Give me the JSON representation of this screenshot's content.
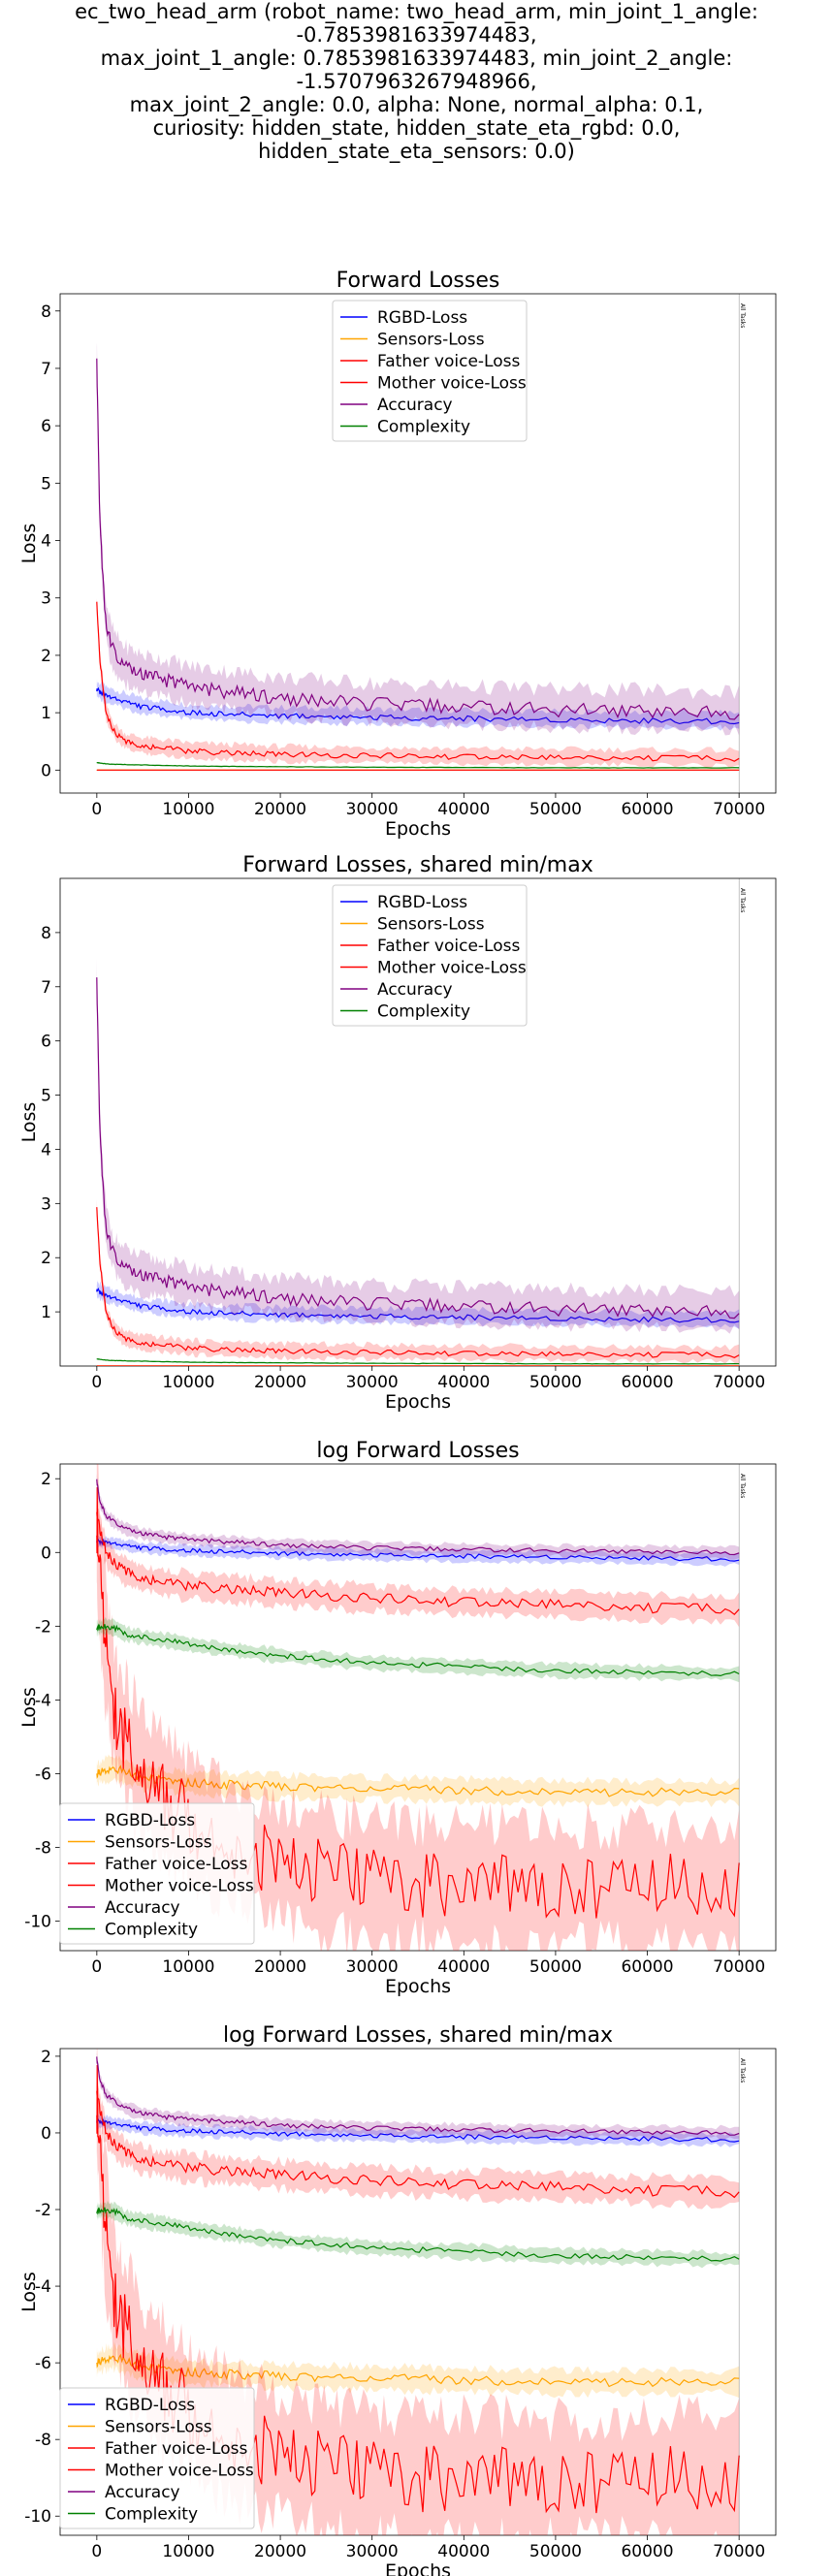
{
  "suptitle": "ec_two_head_arm (robot_name: two_head_arm, min_joint_1_angle: -0.7853981633974483,\nmax_joint_1_angle: 0.7853981633974483, min_joint_2_angle: -1.5707963267948966,\nmax_joint_2_angle: 0.0, alpha: None, normal_alpha: 0.1,\ncuriosity: hidden_state, hidden_state_eta_rgbd: 0.0,\nhidden_state_eta_sensors: 0.0)",
  "colors": {
    "RGBD-Loss": "#0000ff",
    "Sensors-Loss": "#ffa500",
    "Father voice-Loss": "#ff0000",
    "Mother voice-Loss": "#ff0000",
    "Accuracy": "#800080",
    "Complexity": "#008000"
  },
  "chart_data": [
    {
      "type": "line",
      "title": "Forward Losses",
      "xlabel": "Epochs",
      "ylabel": "Loss",
      "xlim": [
        -4000,
        74000
      ],
      "ylim": [
        -0.4,
        8.3
      ],
      "xticks": [
        0,
        10000,
        20000,
        30000,
        40000,
        50000,
        60000,
        70000
      ],
      "yticks": [
        0,
        1,
        2,
        3,
        4,
        5,
        6,
        7,
        8
      ],
      "vline": {
        "x": 70000,
        "label": "All Tasks"
      },
      "legend": {
        "position": "upper center"
      },
      "series": [
        {
          "name": "RGBD-Loss",
          "x": [
            0,
            500,
            1000,
            2000,
            3000,
            5000,
            8000,
            10000,
            15000,
            20000,
            30000,
            40000,
            50000,
            60000,
            70000
          ],
          "values": [
            1.4,
            1.35,
            1.3,
            1.25,
            1.2,
            1.1,
            1.05,
            1.0,
            0.97,
            0.95,
            0.92,
            0.9,
            0.88,
            0.86,
            0.85
          ],
          "band": 0.12
        },
        {
          "name": "Sensors-Loss",
          "x": [
            0,
            500,
            1000,
            2000,
            5000,
            10000,
            20000,
            40000,
            70000
          ],
          "values": [
            0.003,
            0.002,
            0.002,
            0.002,
            0.002,
            0.002,
            0.002,
            0.002,
            0.002
          ],
          "band": 0.002
        },
        {
          "name": "Father voice-Loss",
          "x": [
            0,
            300,
            700,
            1000,
            1500,
            2000,
            3000,
            5000,
            8000,
            10000,
            15000,
            20000,
            30000,
            40000,
            50000,
            60000,
            70000
          ],
          "values": [
            2.9,
            2.0,
            1.4,
            1.0,
            0.8,
            0.65,
            0.5,
            0.42,
            0.37,
            0.33,
            0.3,
            0.27,
            0.25,
            0.23,
            0.22,
            0.21,
            0.2
          ],
          "band": 0.12
        },
        {
          "name": "Mother voice-Loss",
          "x": [
            0,
            1000,
            2000,
            5000,
            10000,
            20000,
            40000,
            70000
          ],
          "values": [
            0.0003,
            0.0002,
            0.0002,
            0.0002,
            0.0002,
            0.0002,
            0.0002,
            0.0002
          ],
          "band": 0.0002
        },
        {
          "name": "Accuracy",
          "x": [
            0,
            300,
            700,
            1000,
            1500,
            2000,
            3000,
            5000,
            8000,
            10000,
            15000,
            20000,
            30000,
            40000,
            50000,
            60000,
            70000
          ],
          "values": [
            7.1,
            4.5,
            3.2,
            2.6,
            2.2,
            2.0,
            1.8,
            1.65,
            1.55,
            1.45,
            1.35,
            1.25,
            1.15,
            1.1,
            1.05,
            1.03,
            1.0
          ],
          "band": 0.3
        },
        {
          "name": "Complexity",
          "x": [
            0,
            500,
            1000,
            2000,
            5000,
            10000,
            20000,
            30000,
            40000,
            50000,
            60000,
            70000
          ],
          "values": [
            0.13,
            0.12,
            0.11,
            0.1,
            0.09,
            0.07,
            0.06,
            0.05,
            0.045,
            0.042,
            0.04,
            0.04
          ],
          "band": 0.01
        }
      ]
    },
    {
      "type": "line",
      "title": "Forward Losses, shared min/max",
      "xlabel": "Epochs",
      "ylabel": "Loss",
      "xlim": [
        -4000,
        74000
      ],
      "ylim": [
        0.0,
        9.0
      ],
      "xticks": [
        0,
        10000,
        20000,
        30000,
        40000,
        50000,
        60000,
        70000
      ],
      "yticks": [
        1,
        2,
        3,
        4,
        5,
        6,
        7,
        8
      ],
      "vline": {
        "x": 70000,
        "label": "All Tasks"
      },
      "legend": {
        "position": "upper center"
      },
      "series": [
        {
          "name": "RGBD-Loss",
          "x": [
            0,
            500,
            1000,
            2000,
            3000,
            5000,
            8000,
            10000,
            15000,
            20000,
            30000,
            40000,
            50000,
            60000,
            70000
          ],
          "values": [
            1.4,
            1.35,
            1.3,
            1.25,
            1.2,
            1.1,
            1.05,
            1.0,
            0.97,
            0.95,
            0.92,
            0.9,
            0.88,
            0.86,
            0.85
          ],
          "band": 0.12
        },
        {
          "name": "Sensors-Loss",
          "x": [
            0,
            500,
            1000,
            2000,
            5000,
            10000,
            20000,
            40000,
            70000
          ],
          "values": [
            0.003,
            0.002,
            0.002,
            0.002,
            0.002,
            0.002,
            0.002,
            0.002,
            0.002
          ],
          "band": 0.002
        },
        {
          "name": "Father voice-Loss",
          "x": [
            0,
            300,
            700,
            1000,
            1500,
            2000,
            3000,
            5000,
            8000,
            10000,
            15000,
            20000,
            30000,
            40000,
            50000,
            60000,
            70000
          ],
          "values": [
            2.9,
            2.0,
            1.4,
            1.0,
            0.8,
            0.65,
            0.5,
            0.42,
            0.37,
            0.33,
            0.3,
            0.27,
            0.25,
            0.23,
            0.22,
            0.21,
            0.2
          ],
          "band": 0.12
        },
        {
          "name": "Mother voice-Loss",
          "x": [
            0,
            1000,
            2000,
            5000,
            10000,
            20000,
            40000,
            70000
          ],
          "values": [
            0.0003,
            0.0002,
            0.0002,
            0.0002,
            0.0002,
            0.0002,
            0.0002,
            0.0002
          ],
          "band": 0.0002
        },
        {
          "name": "Accuracy",
          "x": [
            0,
            300,
            700,
            1000,
            1500,
            2000,
            3000,
            5000,
            8000,
            10000,
            15000,
            20000,
            30000,
            40000,
            50000,
            60000,
            70000
          ],
          "values": [
            7.1,
            4.5,
            3.2,
            2.6,
            2.2,
            2.0,
            1.8,
            1.65,
            1.55,
            1.45,
            1.35,
            1.25,
            1.15,
            1.1,
            1.05,
            1.03,
            1.0
          ],
          "band": 0.3
        },
        {
          "name": "Complexity",
          "x": [
            0,
            500,
            1000,
            2000,
            5000,
            10000,
            20000,
            30000,
            40000,
            50000,
            60000,
            70000
          ],
          "values": [
            0.13,
            0.12,
            0.11,
            0.1,
            0.09,
            0.07,
            0.06,
            0.05,
            0.045,
            0.042,
            0.04,
            0.04
          ],
          "band": 0.01
        }
      ]
    },
    {
      "type": "line",
      "title": "log Forward Losses",
      "xlabel": "Epochs",
      "ylabel": "Loss",
      "xlim": [
        -4000,
        74000
      ],
      "ylim": [
        -10.8,
        2.4
      ],
      "xticks": [
        0,
        10000,
        20000,
        30000,
        40000,
        50000,
        60000,
        70000
      ],
      "yticks": [
        2,
        0,
        -2,
        -4,
        -6,
        -8,
        -10
      ],
      "vline": {
        "x": 70000,
        "label": "All Tasks"
      },
      "legend": {
        "position": "lower left"
      },
      "series": [
        {
          "name": "RGBD-Loss",
          "x": [
            0,
            1000,
            3000,
            5000,
            10000,
            20000,
            30000,
            40000,
            50000,
            60000,
            70000
          ],
          "values": [
            0.3,
            0.28,
            0.2,
            0.12,
            0.05,
            -0.02,
            -0.07,
            -0.1,
            -0.12,
            -0.15,
            -0.18
          ],
          "band": 0.15
        },
        {
          "name": "Sensors-Loss",
          "x": [
            0,
            1000,
            2000,
            3000,
            5000,
            8000,
            10000,
            15000,
            20000,
            30000,
            40000,
            50000,
            60000,
            70000
          ],
          "values": [
            -6.0,
            -5.9,
            -5.85,
            -5.95,
            -6.1,
            -6.2,
            -6.25,
            -6.3,
            -6.35,
            -6.4,
            -6.45,
            -6.5,
            -6.5,
            -6.5
          ],
          "band": 0.3
        },
        {
          "name": "Father voice-Loss",
          "x": [
            0,
            500,
            1000,
            2000,
            3000,
            5000,
            8000,
            10000,
            15000,
            20000,
            30000,
            40000,
            50000,
            60000,
            70000
          ],
          "values": [
            1.0,
            0.5,
            0.0,
            -0.3,
            -0.5,
            -0.7,
            -0.85,
            -0.9,
            -1.0,
            -1.1,
            -1.25,
            -1.35,
            -1.4,
            -1.5,
            -1.55
          ],
          "band": 0.35
        },
        {
          "name": "Mother voice-Loss",
          "x": [
            0,
            300,
            600,
            1000,
            1500,
            2000,
            3000,
            4000,
            5000,
            6000,
            8000,
            10000,
            12000,
            15000,
            20000,
            25000,
            30000,
            40000,
            50000,
            60000,
            70000
          ],
          "values": [
            1.0,
            -0.5,
            -1.5,
            -2.5,
            -3.5,
            -4.3,
            -5.0,
            -5.5,
            -6.0,
            -6.3,
            -6.8,
            -7.2,
            -7.6,
            -8.0,
            -8.4,
            -8.7,
            -8.9,
            -9.0,
            -9.05,
            -9.0,
            -9.1
          ],
          "band": 1.6
        },
        {
          "name": "Accuracy",
          "x": [
            0,
            300,
            1000,
            2000,
            3000,
            5000,
            8000,
            10000,
            15000,
            20000,
            30000,
            40000,
            50000,
            60000,
            70000
          ],
          "values": [
            1.95,
            1.4,
            1.0,
            0.8,
            0.65,
            0.5,
            0.4,
            0.35,
            0.28,
            0.2,
            0.12,
            0.08,
            0.05,
            0.02,
            0.0
          ],
          "band": 0.15
        },
        {
          "name": "Complexity",
          "x": [
            0,
            1000,
            2000,
            3000,
            5000,
            8000,
            10000,
            15000,
            20000,
            30000,
            40000,
            50000,
            60000,
            70000
          ],
          "values": [
            -2.05,
            -2.0,
            -2.05,
            -2.2,
            -2.3,
            -2.4,
            -2.5,
            -2.65,
            -2.8,
            -3.0,
            -3.1,
            -3.2,
            -3.25,
            -3.3
          ],
          "band": 0.18
        }
      ]
    },
    {
      "type": "line",
      "title": "log Forward Losses, shared min/max",
      "xlabel": "Epochs",
      "ylabel": "Loss",
      "xlim": [
        -4000,
        74000
      ],
      "ylim": [
        -10.5,
        2.2
      ],
      "xticks": [
        0,
        10000,
        20000,
        30000,
        40000,
        50000,
        60000,
        70000
      ],
      "yticks": [
        2,
        0,
        -2,
        -4,
        -6,
        -8,
        -10
      ],
      "vline": {
        "x": 70000,
        "label": "All Tasks"
      },
      "legend": {
        "position": "lower left"
      },
      "series": [
        {
          "name": "RGBD-Loss",
          "x": [
            0,
            1000,
            3000,
            5000,
            10000,
            20000,
            30000,
            40000,
            50000,
            60000,
            70000
          ],
          "values": [
            0.3,
            0.28,
            0.2,
            0.12,
            0.05,
            -0.02,
            -0.07,
            -0.1,
            -0.12,
            -0.15,
            -0.18
          ],
          "band": 0.15
        },
        {
          "name": "Sensors-Loss",
          "x": [
            0,
            1000,
            2000,
            3000,
            5000,
            8000,
            10000,
            15000,
            20000,
            30000,
            40000,
            50000,
            60000,
            70000
          ],
          "values": [
            -6.0,
            -5.9,
            -5.85,
            -5.95,
            -6.1,
            -6.2,
            -6.25,
            -6.3,
            -6.35,
            -6.4,
            -6.45,
            -6.5,
            -6.5,
            -6.5
          ],
          "band": 0.3
        },
        {
          "name": "Father voice-Loss",
          "x": [
            0,
            500,
            1000,
            2000,
            3000,
            5000,
            8000,
            10000,
            15000,
            20000,
            30000,
            40000,
            50000,
            60000,
            70000
          ],
          "values": [
            1.0,
            0.5,
            0.0,
            -0.3,
            -0.5,
            -0.7,
            -0.85,
            -0.9,
            -1.0,
            -1.1,
            -1.25,
            -1.35,
            -1.4,
            -1.5,
            -1.55
          ],
          "band": 0.35
        },
        {
          "name": "Mother voice-Loss",
          "x": [
            0,
            300,
            600,
            1000,
            1500,
            2000,
            3000,
            4000,
            5000,
            6000,
            8000,
            10000,
            12000,
            15000,
            20000,
            25000,
            30000,
            40000,
            50000,
            60000,
            70000
          ],
          "values": [
            1.0,
            -0.5,
            -1.5,
            -2.5,
            -3.5,
            -4.3,
            -5.0,
            -5.5,
            -6.0,
            -6.3,
            -6.8,
            -7.2,
            -7.6,
            -8.0,
            -8.4,
            -8.7,
            -8.9,
            -9.0,
            -9.05,
            -9.0,
            -9.1
          ],
          "band": 1.6
        },
        {
          "name": "Accuracy",
          "x": [
            0,
            300,
            1000,
            2000,
            3000,
            5000,
            8000,
            10000,
            15000,
            20000,
            30000,
            40000,
            50000,
            60000,
            70000
          ],
          "values": [
            1.95,
            1.4,
            1.0,
            0.8,
            0.65,
            0.5,
            0.4,
            0.35,
            0.28,
            0.2,
            0.12,
            0.08,
            0.05,
            0.02,
            0.0
          ],
          "band": 0.15
        },
        {
          "name": "Complexity",
          "x": [
            0,
            1000,
            2000,
            3000,
            5000,
            8000,
            10000,
            15000,
            20000,
            30000,
            40000,
            50000,
            60000,
            70000
          ],
          "values": [
            -2.05,
            -2.0,
            -2.05,
            -2.2,
            -2.3,
            -2.4,
            -2.5,
            -2.65,
            -2.8,
            -3.0,
            -3.1,
            -3.2,
            -3.25,
            -3.3
          ],
          "band": 0.18
        }
      ]
    }
  ]
}
